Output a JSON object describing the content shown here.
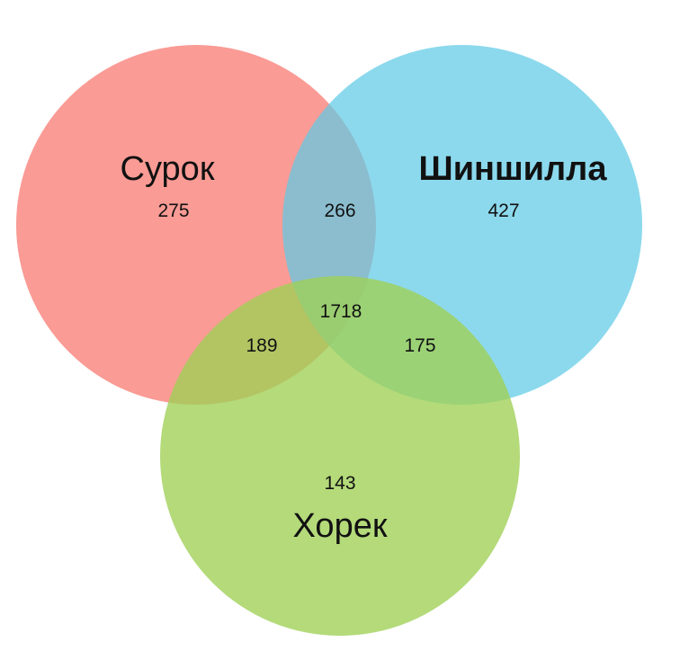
{
  "sets": [
    {
      "id": "a",
      "label": "Сурок",
      "color": "#f97f77",
      "bold": false
    },
    {
      "id": "b",
      "label": "Шиншилла",
      "color": "#5fcbe6",
      "bold": true
    },
    {
      "id": "c",
      "label": "Хорек",
      "color": "#9fcf55",
      "bold": false
    }
  ],
  "regions": {
    "only_a": "275",
    "only_b": "427",
    "only_c": "143",
    "a_b": "266",
    "a_c": "189",
    "b_c": "175",
    "a_b_c": "1718"
  }
}
